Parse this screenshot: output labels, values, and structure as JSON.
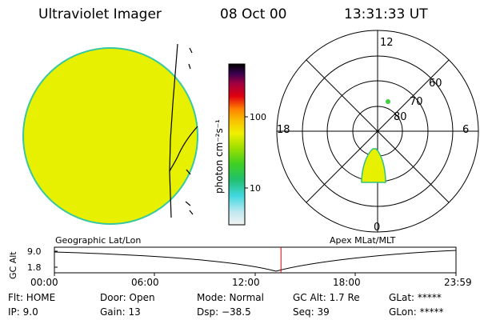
{
  "header": {
    "instrument": "Ultraviolet Imager",
    "date": "08 Oct 00",
    "time": "13:31:33 UT"
  },
  "colorbar": {
    "unit_label": "photon cm⁻²s⁻¹",
    "ticks": [
      "100",
      "10"
    ]
  },
  "polar": {
    "mlt_labels": {
      "top": "12",
      "left": "18",
      "right": "6",
      "bottom": "0"
    },
    "lat_labels": [
      "60",
      "70",
      "80"
    ]
  },
  "panel_labels": {
    "left": "Geographic Lat/Lon",
    "right": "Apex MLat/MLT"
  },
  "altitude_plot": {
    "ylabel": "GC Alt",
    "yticks": [
      "9.0",
      "1.8"
    ],
    "xticks": [
      "00:00",
      "06:00",
      "12:00",
      "18:00",
      "23:59"
    ],
    "current_time_hours": 13.53,
    "marker_color": "#cc0000"
  },
  "status": {
    "flt": "Flt: HOME",
    "door": "Door: Open",
    "mode": "Mode: Normal",
    "gc_alt": "GC Alt: 1.7 Re",
    "glat": "GLat: *****",
    "ip": "IP:  9.0",
    "gain": "Gain: 13",
    "dsp": "Dsp:  −38.5",
    "seq": "Seq: 39",
    "glon": "GLon: *****"
  },
  "colors": {
    "disc_fill": "#e6f000",
    "disc_edge": "#38c8a0",
    "aurora_fill": "#e6f000",
    "aurora_edge": "#30c080",
    "spot": "#40d040",
    "marker": "#cc0000"
  }
}
